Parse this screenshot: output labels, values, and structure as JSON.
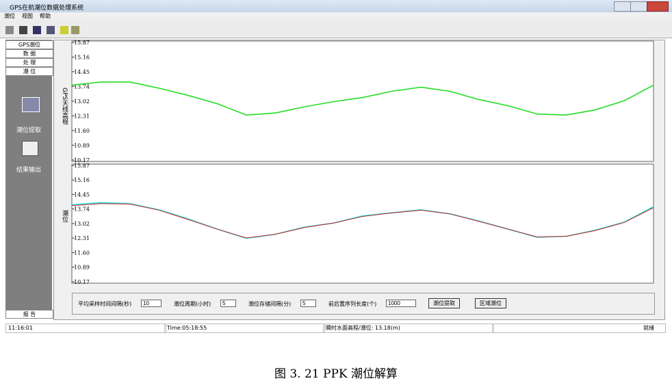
{
  "window": {
    "title": "GPS在航潮位数据处理系统",
    "menu": [
      "潮位",
      "视图",
      "帮助"
    ],
    "side_tabs": [
      "GPS潮位",
      "数 据",
      "处 理",
      "潮 位"
    ],
    "side_items": [
      "潮位提取",
      "结果输出"
    ],
    "side_bottom": "报 告",
    "controls": [
      {
        "label": "平均采样时间间隔(秒)",
        "value": "10"
      },
      {
        "label": "潮位周期(小时)",
        "value": "5"
      },
      {
        "label": "潮位存储间隔(分)",
        "value": "5"
      },
      {
        "label": "前后置序列长度(个)",
        "value": "1000"
      }
    ],
    "buttons": [
      "潮位提取",
      "区域潮位"
    ],
    "status": [
      "11:16:01",
      "Time:05:18:55",
      "瞬时水面高程/潮位: 13.18(m)",
      "就绪"
    ]
  },
  "chart_data": [
    {
      "type": "line",
      "ylabel": "GPS天线高程",
      "ylim": [
        10.17,
        15.87
      ],
      "yticks": [
        15.87,
        15.16,
        14.45,
        13.74,
        13.02,
        12.31,
        {
          "value": 11.6,
          "label": "11.60"
        },
        10.89,
        10.17
      ],
      "series": [
        {
          "color": "#22dd22",
          "values": [
            13.8,
            13.95,
            13.95,
            13.65,
            13.3,
            12.9,
            12.35,
            12.45,
            12.75,
            13.0,
            13.2,
            13.5,
            13.7,
            13.5,
            13.1,
            12.8,
            12.4,
            12.35,
            12.6,
            13.05,
            13.8
          ]
        }
      ]
    },
    {
      "type": "line",
      "ylabel": "潮位",
      "ylim": [
        10.17,
        15.87
      ],
      "yticks": [
        15.87,
        15.16,
        14.45,
        13.74,
        13.02,
        12.31,
        {
          "value": 11.6,
          "label": "11.60"
        },
        10.89,
        10.17
      ],
      "series": [
        {
          "color": "#22dddd",
          "values": [
            13.95,
            14.05,
            14.0,
            13.7,
            13.25,
            12.75,
            12.3,
            12.5,
            12.85,
            13.05,
            13.4,
            13.55,
            13.7,
            13.5,
            13.15,
            12.75,
            12.35,
            12.4,
            12.7,
            13.1,
            13.85
          ]
        },
        {
          "color": "#cc2222",
          "values": [
            13.9,
            14.0,
            13.98,
            13.68,
            13.22,
            12.75,
            12.32,
            12.5,
            12.83,
            13.05,
            13.37,
            13.55,
            13.68,
            13.5,
            13.13,
            12.75,
            12.37,
            12.4,
            12.68,
            13.08,
            13.8
          ]
        }
      ]
    }
  ],
  "caption": "图 3. 21 PPK 潮位解算"
}
